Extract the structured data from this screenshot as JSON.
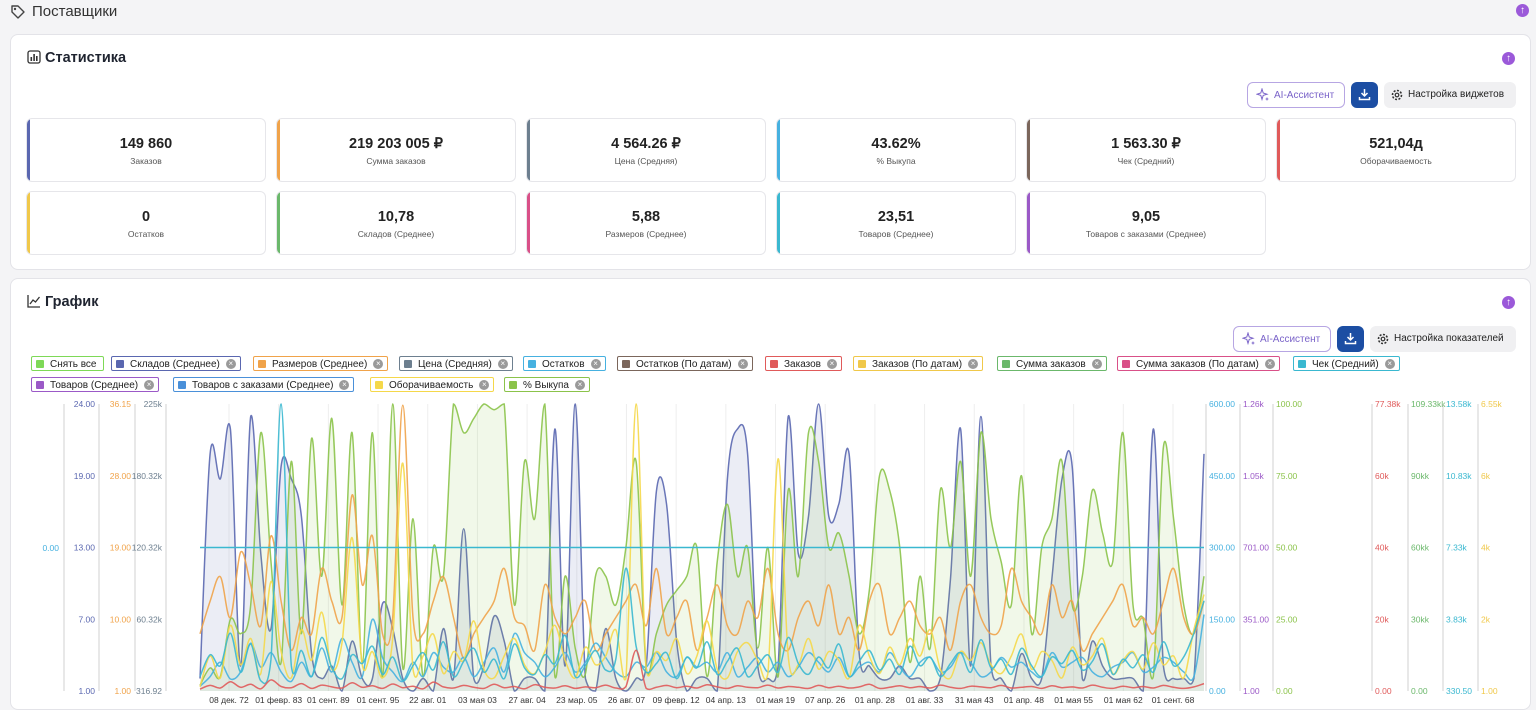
{
  "page": {
    "title": "Поставщики"
  },
  "stats": {
    "title": "Статистика",
    "ai_label": "AI-Ассистент",
    "settings_label": "Настройка виджетов",
    "cards": [
      {
        "value": "149 860",
        "label": "Заказов",
        "color": "#5a67b0"
      },
      {
        "value": "219 203 005 ₽",
        "label": "Сумма заказов",
        "color": "#f0a34a"
      },
      {
        "value": "4 564.26 ₽",
        "label": "Цена (Средняя)",
        "color": "#6d7f8f"
      },
      {
        "value": "43.62%",
        "label": "% Выкупа",
        "color": "#46b1e0"
      },
      {
        "value": "1 563.30 ₽",
        "label": "Чек (Средний)",
        "color": "#7b665b"
      },
      {
        "value": "521,04д",
        "label": "Оборачиваемость",
        "color": "#e05a5a"
      },
      {
        "value": "0",
        "label": "Остатков",
        "color": "#f0c84a"
      },
      {
        "value": "10,78",
        "label": "Складов (Среднее)",
        "color": "#6bb86b"
      },
      {
        "value": "5,88",
        "label": "Размеров (Среднее)",
        "color": "#d95088"
      },
      {
        "value": "23,51",
        "label": "Товаров (Среднее)",
        "color": "#3ab8d0"
      },
      {
        "value": "9,05",
        "label": "Товаров с заказами (Среднее)",
        "color": "#9b59c7"
      }
    ]
  },
  "chart_panel": {
    "title": "График",
    "ai_label": "AI-Ассистент",
    "settings_label": "Настройка показателей",
    "legend": [
      {
        "label": "Снять все",
        "color": "#7ed957",
        "closable": false
      },
      {
        "label": "Складов (Среднее)",
        "color": "#5a67b0",
        "closable": true
      },
      {
        "label": "Размеров (Среднее)",
        "color": "#f0a34a",
        "closable": true
      },
      {
        "label": "Цена (Средняя)",
        "color": "#6d7f8f",
        "closable": true
      },
      {
        "label": "Остатков",
        "color": "#46b1e0",
        "closable": true
      },
      {
        "label": "Остатков (По датам)",
        "color": "#7b665b",
        "closable": true
      },
      {
        "label": "Заказов",
        "color": "#e05a5a",
        "closable": true
      },
      {
        "label": "Заказов (По датам)",
        "color": "#f0c84a",
        "closable": true
      },
      {
        "label": "Сумма заказов",
        "color": "#6bb86b",
        "closable": true
      },
      {
        "label": "Сумма заказов (По датам)",
        "color": "#d95088",
        "closable": true
      },
      {
        "label": "Чек (Средний)",
        "color": "#3ab8d0",
        "closable": true
      },
      {
        "label": "Товаров (Среднее)",
        "color": "#9b59c7",
        "closable": true
      },
      {
        "label": "Товаров с заказами (Среднее)",
        "color": "#4a90d9",
        "closable": true
      },
      {
        "label": "Оборачиваемость",
        "color": "#f5d84a",
        "closable": true
      },
      {
        "label": "% Выкупа",
        "color": "#8bc34a",
        "closable": true
      }
    ]
  },
  "chart_data": {
    "type": "area",
    "x_ticks": [
      "08 дек. 72",
      "01 февр. 83",
      "01 сент. 89",
      "01 сент. 95",
      "22 авг. 01",
      "03 мая 03",
      "27 авг. 04",
      "23 мар. 05",
      "26 авг. 07",
      "09 февр. 12",
      "04 апр. 13",
      "01 мая 19",
      "07 апр. 26",
      "01 апр. 28",
      "01 авг. 33",
      "31 мая 43",
      "01 апр. 48",
      "01 мая 55",
      "01 мая 62",
      "01 сент. 68"
    ],
    "left_axes": [
      {
        "ticks": [
          "0.00"
        ],
        "color": "#46b1e0"
      },
      {
        "ticks": [
          "24.00",
          "19.00",
          "13.00",
          "7.00",
          "1.00"
        ],
        "color": "#5a67b0"
      },
      {
        "ticks": [
          "36.15",
          "28.00",
          "19.00",
          "10.00",
          "1.00"
        ],
        "color": "#f0a34a"
      },
      {
        "ticks": [
          "225k",
          "180.32k",
          "120.32k",
          "60.32k",
          "316.92"
        ],
        "color": "#6d7f8f"
      }
    ],
    "right_axes": [
      {
        "ticks": [
          "600.00",
          "450.00",
          "300.00",
          "150.00",
          "0.00"
        ],
        "color": "#46b1e0"
      },
      {
        "ticks": [
          "1.26k",
          "1.05k",
          "701.00",
          "351.00",
          "1.00"
        ],
        "color": "#9b59c7"
      },
      {
        "ticks": [
          "100.00",
          "75.00",
          "50.00",
          "25.00",
          "0.00"
        ],
        "color": "#8bc34a"
      },
      {
        "ticks": [
          "77.38k",
          "60k",
          "40k",
          "20k",
          "0.00"
        ],
        "color": "#e05a5a"
      },
      {
        "ticks": [
          "109.33kk",
          "90kk",
          "60kk",
          "30kk",
          "0.00"
        ],
        "color": "#6bb86b"
      },
      {
        "ticks": [
          "13.58k",
          "10.83k",
          "7.33k",
          "3.83k",
          "330.50"
        ],
        "color": "#3ab8d0"
      },
      {
        "ticks": [
          "6.55k",
          "6k",
          "4k",
          "2k",
          "1.00"
        ],
        "color": "#f0c84a"
      }
    ],
    "reference_line": {
      "series": "Чек (Средний)",
      "value": 300,
      "axis": "600.00"
    },
    "series": [
      {
        "name": "Складов (Среднее)",
        "color": "#5a67b0",
        "fill": true,
        "values": [
          2,
          20,
          18,
          22,
          3,
          23,
          12,
          6,
          19,
          18,
          15,
          4,
          2,
          3,
          1,
          5,
          2,
          2,
          8,
          6,
          2,
          1,
          2,
          1,
          6,
          2,
          14,
          2,
          3,
          7,
          5,
          1,
          2,
          2,
          1,
          22,
          3,
          24,
          2,
          1,
          6,
          2,
          1,
          2,
          3,
          17,
          16,
          5,
          1,
          2,
          2,
          1,
          18,
          22,
          20,
          3,
          2,
          3,
          23,
          12,
          15,
          24,
          15,
          16,
          20,
          4,
          3,
          2,
          2,
          3,
          2,
          2,
          1,
          2,
          10,
          22,
          3,
          23,
          3,
          2,
          1,
          4,
          2,
          2,
          10,
          18,
          19,
          2,
          5,
          3,
          2,
          2,
          2,
          1,
          22,
          3,
          2,
          2,
          2,
          20
        ]
      },
      {
        "name": "% Выкупа",
        "color": "#8bc34a",
        "fill": true,
        "values": [
          2,
          8,
          5,
          25,
          20,
          30,
          90,
          45,
          10,
          80,
          20,
          88,
          40,
          95,
          30,
          90,
          10,
          90,
          5,
          100,
          8,
          60,
          5,
          50,
          40,
          100,
          90,
          95,
          100,
          98,
          100,
          30,
          80,
          60,
          100,
          5,
          40,
          15,
          6,
          40,
          40,
          30,
          50,
          80,
          8,
          20,
          30,
          35,
          40,
          50,
          5,
          45,
          65,
          40,
          50,
          15,
          50,
          5,
          70,
          40,
          90,
          80,
          50,
          55,
          40,
          20,
          35,
          75,
          70,
          50,
          10,
          40,
          15,
          70,
          50,
          80,
          40,
          90,
          60,
          45,
          30,
          75,
          20,
          50,
          60,
          80,
          30,
          40,
          70,
          55,
          45,
          90,
          30,
          25,
          5,
          85,
          60,
          30,
          20,
          40
        ]
      },
      {
        "name": "Размеров (Среднее)",
        "color": "#f0a34a",
        "fill": false,
        "values": [
          8,
          12,
          15,
          10,
          18,
          14,
          9,
          20,
          12,
          6,
          10,
          8,
          16,
          12,
          10,
          25,
          14,
          20,
          8,
          10,
          36,
          10,
          8,
          12,
          15,
          10,
          5,
          8,
          10,
          12,
          16,
          10,
          9,
          6,
          14,
          10,
          8,
          10,
          12,
          6,
          8,
          10,
          12,
          14,
          9,
          16,
          8,
          10,
          12,
          6,
          10,
          14,
          9,
          8,
          12,
          10,
          16,
          8,
          6,
          10,
          12,
          9,
          14,
          8,
          10,
          6,
          12,
          14,
          8,
          10,
          12,
          9,
          8,
          10,
          6,
          12,
          14,
          10,
          8,
          9,
          16,
          12,
          10,
          8,
          14,
          10,
          12,
          6,
          8,
          10,
          12,
          14,
          9,
          10,
          8,
          12,
          16,
          10,
          8,
          12
        ]
      },
      {
        "name": "Остатков",
        "color": "#46b1e0",
        "fill": false,
        "values": [
          10,
          30,
          60,
          25,
          40,
          100,
          50,
          80,
          40,
          20,
          60,
          30,
          90,
          40,
          110,
          60,
          30,
          150,
          70,
          40,
          20,
          60,
          30,
          80,
          50,
          40,
          70,
          30,
          60,
          90,
          40,
          120,
          80,
          60,
          30,
          50,
          80,
          40,
          60,
          100,
          70,
          40,
          30,
          60,
          50,
          80,
          40,
          30,
          70,
          50,
          60,
          40,
          80,
          30,
          50,
          70,
          40,
          60,
          30,
          50,
          80,
          60,
          40,
          70,
          30,
          50,
          60,
          40,
          80,
          50,
          30,
          60,
          70,
          40,
          50,
          80,
          60,
          30,
          40,
          70,
          50,
          60,
          40,
          30,
          80,
          50,
          60,
          70,
          40,
          30,
          50,
          60,
          80,
          40,
          50,
          70,
          60,
          40,
          30,
          160
        ]
      },
      {
        "name": "Оборачиваемость",
        "color": "#f5d84a",
        "fill": false,
        "values": [
          100,
          800,
          300,
          1500,
          600,
          1200,
          400,
          2500,
          900,
          300,
          1400,
          700,
          1800,
          500,
          1100,
          3500,
          600,
          900,
          300,
          1200,
          5200,
          500,
          800,
          1300,
          400,
          900,
          700,
          1600,
          500,
          300,
          800,
          1200,
          600,
          400,
          900,
          1500,
          700,
          300,
          1000,
          600,
          800,
          1400,
          300,
          6550,
          500,
          900,
          700,
          1200,
          400,
          800,
          1600,
          500,
          300,
          900,
          1100,
          700,
          400,
          5300,
          800,
          600,
          1200,
          500,
          900,
          700,
          300,
          1500,
          800,
          400,
          1000,
          600,
          1200,
          800,
          1400,
          500,
          300,
          900,
          700,
          1100,
          600,
          400,
          800,
          1300,
          500,
          900,
          700,
          300,
          1000,
          600,
          800,
          1200,
          400,
          700,
          900,
          500,
          1100,
          600,
          800,
          300,
          1400,
          2200
        ]
      },
      {
        "name": "Чек (Средний)",
        "color": "#3ab8d0",
        "fill": false,
        "values": [
          1000,
          2000,
          1500,
          3000,
          1200,
          2500,
          800,
          1800,
          13580,
          1500,
          2200,
          1000,
          2800,
          1400,
          900,
          2000,
          1600,
          2400,
          1100,
          1900,
          800,
          1500,
          2100,
          1300,
          2600,
          1000,
          1700,
          2300,
          1200,
          1800,
          900,
          2500,
          1400,
          1100,
          2000,
          1600,
          2900,
          1000,
          1500,
          2200,
          1300,
          1800,
          6000,
          2400,
          1200,
          1600,
          2100,
          900,
          1900,
          1400,
          2600,
          1100,
          1700,
          2300,
          1000,
          1500,
          2000,
          1200,
          2800,
          1600,
          1100,
          1900,
          1400,
          2500,
          1000,
          1700,
          2200,
          1300,
          1800,
          1100,
          2400,
          1500,
          1900,
          1000,
          1600,
          2100,
          1200,
          2700,
          1400,
          1800,
          1100,
          2300,
          1500,
          1000,
          1900,
          1600,
          2200,
          1300,
          1700,
          2500,
          1100,
          1800,
          1400,
          2000,
          1200,
          2600,
          1500,
          1900,
          3000,
          4500
        ]
      },
      {
        "name": "Заказов",
        "color": "#e05a5a",
        "fill": false,
        "values": [
          500,
          1500,
          800,
          2500,
          1000,
          1800,
          600,
          3000,
          1200,
          900,
          2000,
          700,
          1600,
          1100,
          800,
          2200,
          1000,
          1400,
          700,
          1900,
          900,
          1300,
          600,
          2400,
          1100,
          800,
          1500,
          1000,
          700,
          1800,
          900,
          1200,
          600,
          1700,
          1000,
          800,
          1400,
          700,
          1100,
          900,
          1600,
          800,
          1200,
          11000,
          700,
          1000,
          1500,
          900,
          1300,
          800,
          1700,
          1100,
          700,
          1400,
          1000,
          900,
          1600,
          800,
          1200,
          1000,
          700,
          1500,
          900,
          1300,
          800,
          1100,
          1800,
          700,
          1000,
          1400,
          900,
          1200,
          800,
          1600,
          1000,
          700,
          1300,
          1100,
          900,
          1500,
          800,
          1000,
          1200,
          700,
          1400,
          900,
          1100,
          800,
          1600,
          1000,
          700,
          1300,
          900,
          1200,
          800,
          1500,
          1000,
          700,
          1100,
          2000
        ]
      }
    ]
  }
}
